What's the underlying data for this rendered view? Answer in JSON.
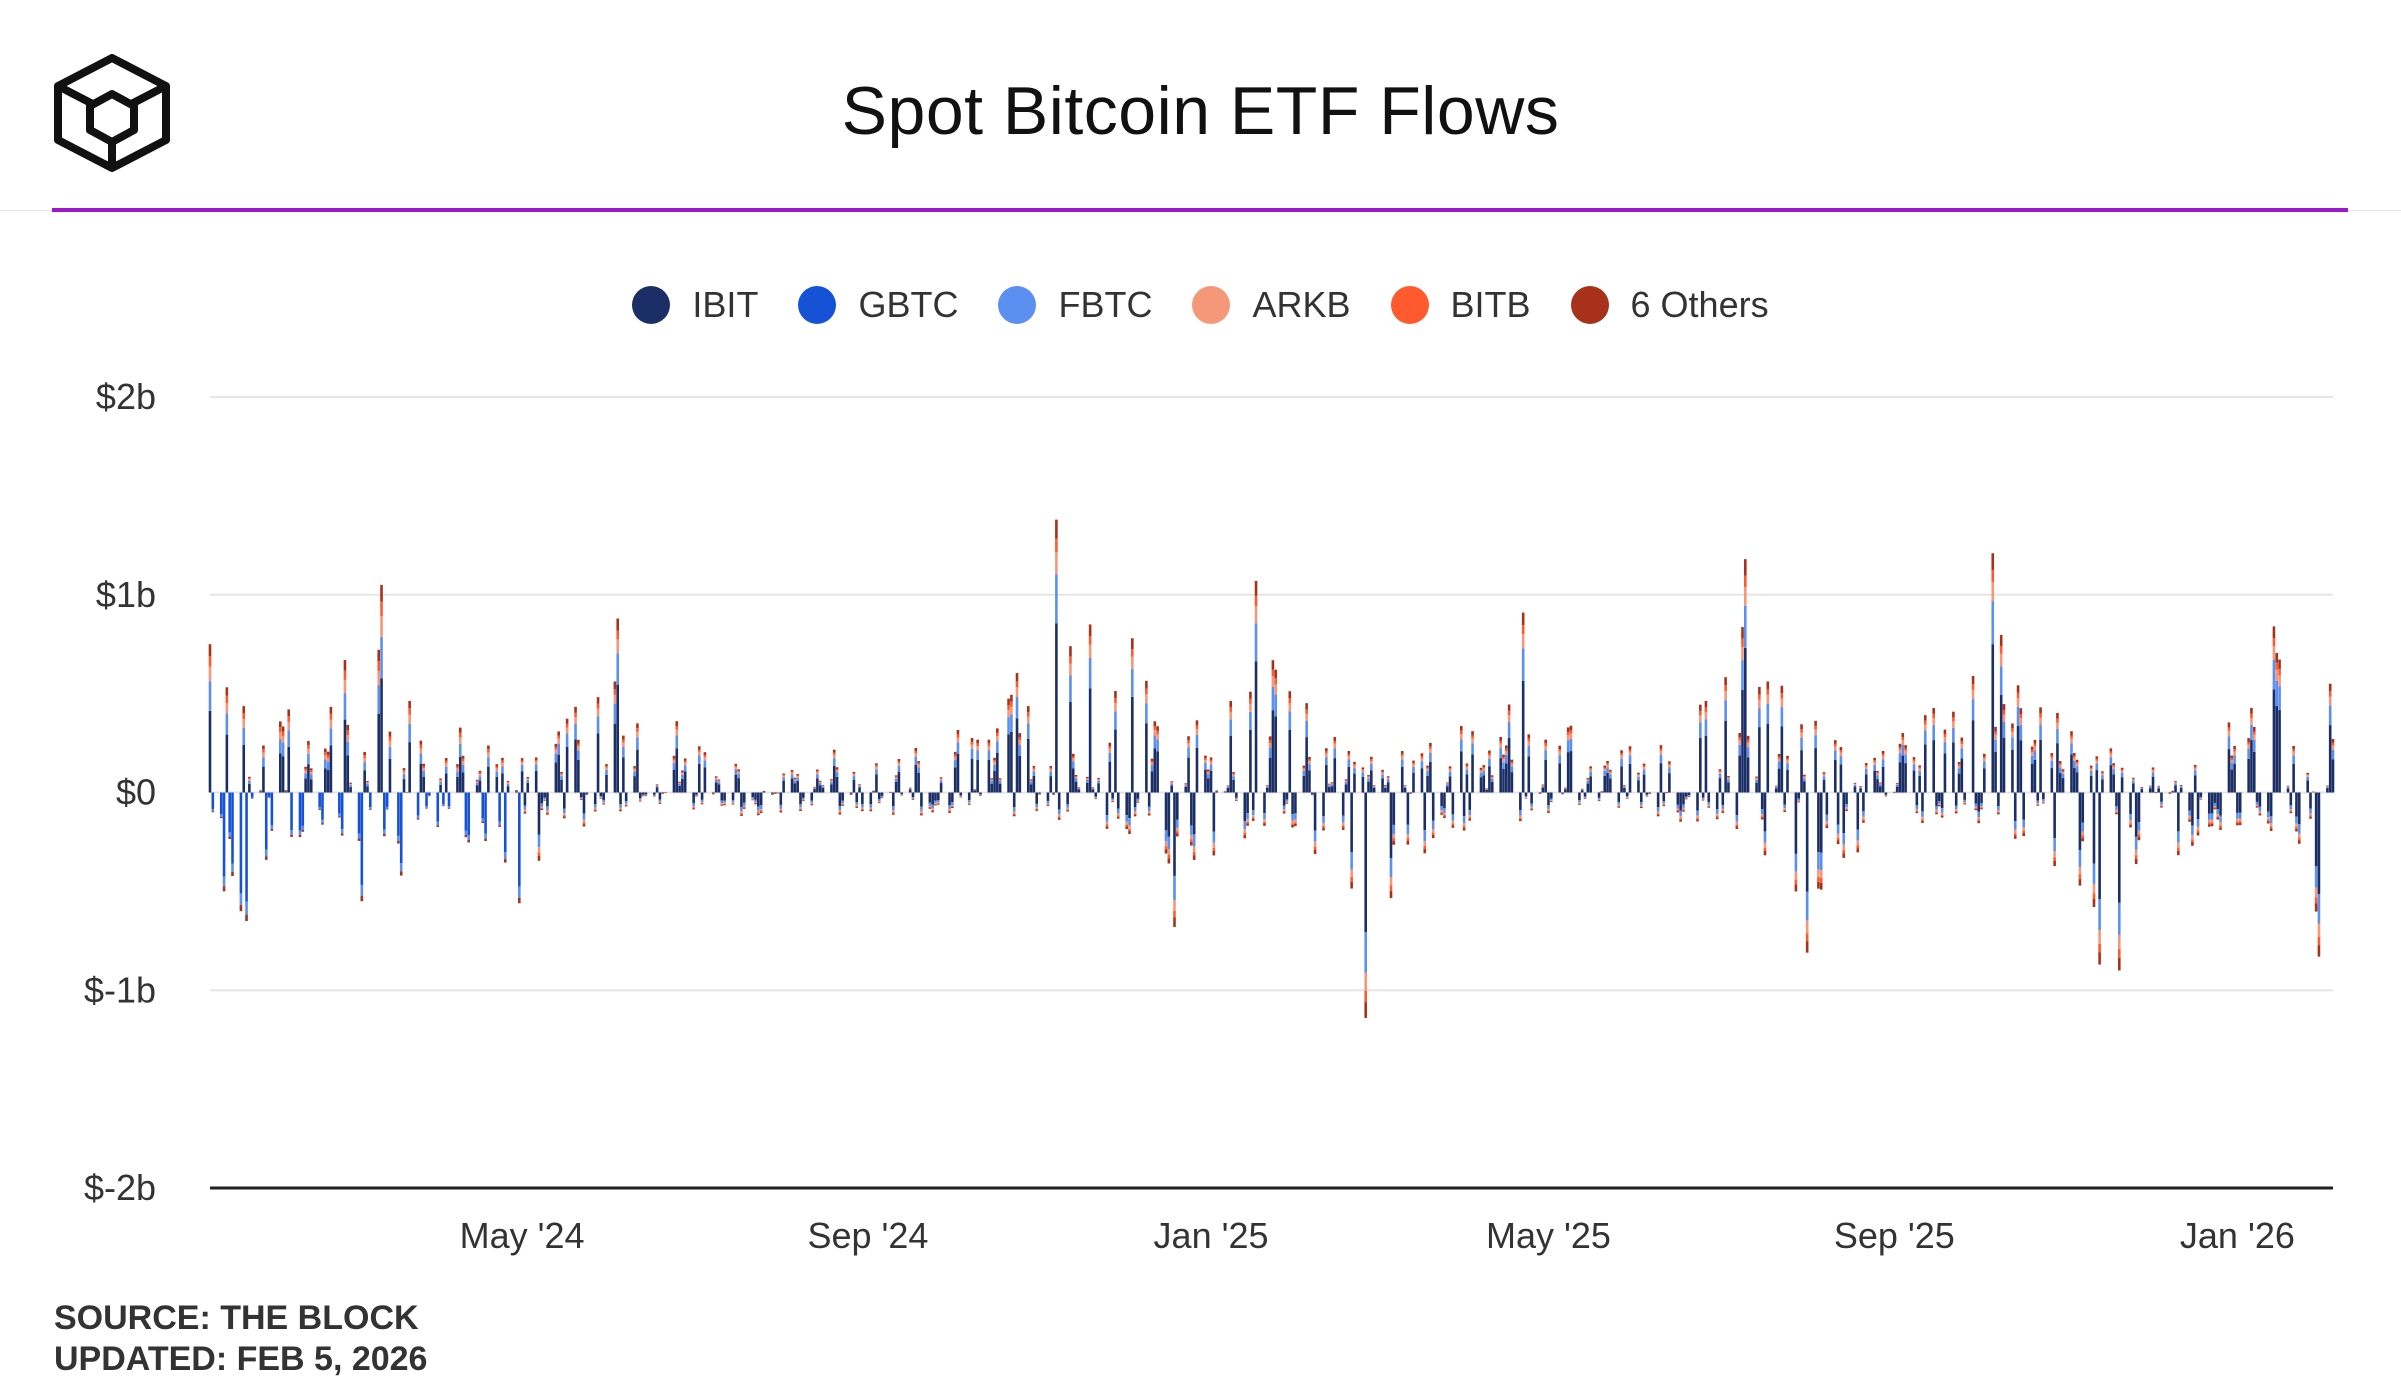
{
  "header": {
    "title": "Spot Bitcoin ETF Flows",
    "logo_icon": "the-block-cube-logo"
  },
  "legend": [
    {
      "label": "IBIT",
      "color": "#1b2f66"
    },
    {
      "label": "GBTC",
      "color": "#1652d6"
    },
    {
      "label": "FBTC",
      "color": "#5b8ff0"
    },
    {
      "label": "ARKB",
      "color": "#f5987a"
    },
    {
      "label": "BITB",
      "color": "#ff5a2e"
    },
    {
      "label": "6 Others",
      "color": "#a8311b"
    }
  ],
  "colors": {
    "accent_rule": "#9b19c8",
    "grid": "#e5e5e5",
    "baseline": "#222222"
  },
  "footer": {
    "source": "SOURCE: THE BLOCK",
    "updated": "UPDATED: FEB 5, 2026"
  },
  "chart_data": {
    "type": "bar",
    "stacked": true,
    "title": "Spot Bitcoin ETF Flows",
    "ylabel": "",
    "xlabel": "",
    "ylim": [
      -2,
      2
    ],
    "y_unit": "billion USD",
    "y_ticks": [
      {
        "value": 2,
        "label": "$2b"
      },
      {
        "value": 1,
        "label": "$1b"
      },
      {
        "value": 0,
        "label": "$0"
      },
      {
        "value": -1,
        "label": "$-1b"
      },
      {
        "value": -2,
        "label": "$-2b"
      }
    ],
    "x_range": [
      "2024-01-11",
      "2026-02-04"
    ],
    "x_ticks": [
      {
        "date": "2024-05-01",
        "label": "May '24"
      },
      {
        "date": "2024-09-01",
        "label": "Sep '24"
      },
      {
        "date": "2025-01-01",
        "label": "Jan '25"
      },
      {
        "date": "2025-05-01",
        "label": "May '25"
      },
      {
        "date": "2025-09-01",
        "label": "Sep '25"
      },
      {
        "date": "2026-01-01",
        "label": "Jan '26"
      }
    ],
    "grid": true,
    "legend_position": "top-center",
    "series_order": [
      "IBIT",
      "GBTC",
      "FBTC",
      "ARKB",
      "BITB",
      "6 Others"
    ],
    "approximate_daily_net_flow_samples": [
      {
        "date": "2024-01-11",
        "total": 0.75
      },
      {
        "date": "2024-01-12",
        "total": -0.1
      },
      {
        "date": "2024-01-16",
        "total": -0.5
      },
      {
        "date": "2024-01-22",
        "total": -0.6
      },
      {
        "date": "2024-01-24",
        "total": -0.65
      },
      {
        "date": "2024-02-08",
        "total": 0.42
      },
      {
        "date": "2024-02-28",
        "total": 0.67
      },
      {
        "date": "2024-03-05",
        "total": -0.55
      },
      {
        "date": "2024-03-12",
        "total": 1.05
      },
      {
        "date": "2024-03-19",
        "total": -0.42
      },
      {
        "date": "2024-04-30",
        "total": -0.56
      },
      {
        "date": "2024-06-04",
        "total": 0.88
      },
      {
        "date": "2024-11-07",
        "total": 1.38
      },
      {
        "date": "2024-11-12",
        "total": 0.74
      },
      {
        "date": "2024-11-19",
        "total": 0.85
      },
      {
        "date": "2024-12-04",
        "total": 0.78
      },
      {
        "date": "2024-12-19",
        "total": -0.68
      },
      {
        "date": "2025-01-17",
        "total": 1.07
      },
      {
        "date": "2025-02-25",
        "total": -1.14
      },
      {
        "date": "2025-04-22",
        "total": 0.91
      },
      {
        "date": "2025-07-10",
        "total": 1.18
      },
      {
        "date": "2025-08-01",
        "total": -0.81
      },
      {
        "date": "2025-10-06",
        "total": 1.21
      },
      {
        "date": "2025-11-13",
        "total": -0.87
      },
      {
        "date": "2025-11-20",
        "total": -0.9
      },
      {
        "date": "2026-01-14",
        "total": 0.84
      },
      {
        "date": "2026-01-30",
        "total": -0.83
      },
      {
        "date": "2026-02-03",
        "total": 0.55
      }
    ]
  }
}
